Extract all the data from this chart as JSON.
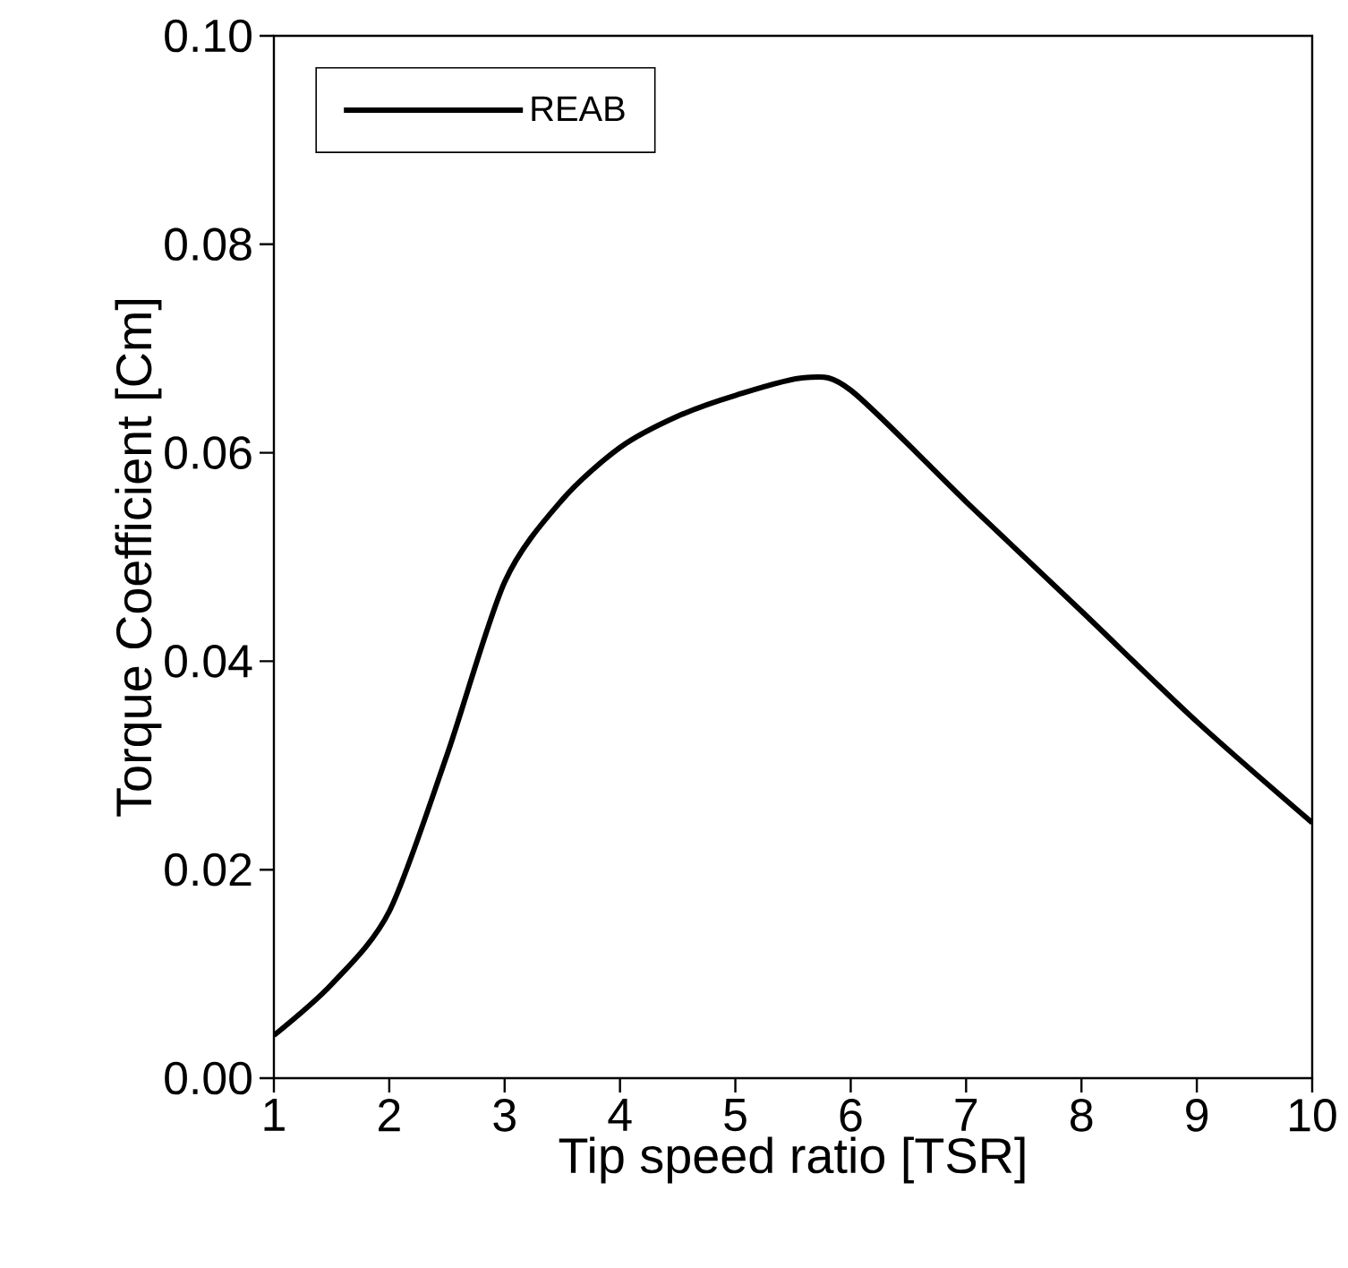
{
  "chart_data": {
    "type": "line",
    "xlabel": "Tip speed ratio [TSR]",
    "ylabel": "Torque Coefficient [Cm]",
    "x": [
      1,
      1.5,
      2,
      2.5,
      3,
      3.5,
      4,
      4.5,
      5,
      5.6,
      6,
      7,
      8,
      9,
      10
    ],
    "series": [
      {
        "name": "REAB",
        "color": "#000000",
        "values": [
          0.0041,
          0.009,
          0.016,
          0.031,
          0.0476,
          0.0555,
          0.0605,
          0.0635,
          0.0655,
          0.0672,
          0.066,
          0.0553,
          0.0448,
          0.0342,
          0.0245
        ]
      }
    ],
    "xlim": [
      1,
      10
    ],
    "ylim": [
      0,
      0.1
    ],
    "xticks": [
      1,
      2,
      3,
      4,
      5,
      6,
      7,
      8,
      9,
      10
    ],
    "yticks": [
      {
        "value": 0,
        "label": "0.00"
      },
      {
        "value": 0.02,
        "label": "0.02"
      },
      {
        "value": 0.04,
        "label": "0.04"
      },
      {
        "value": 0.06,
        "label": "0.06"
      },
      {
        "value": 0.08,
        "label": "0.08"
      },
      {
        "value": 0.1,
        "label": "0.10"
      }
    ],
    "legend": "top left",
    "line_style": "solid"
  }
}
